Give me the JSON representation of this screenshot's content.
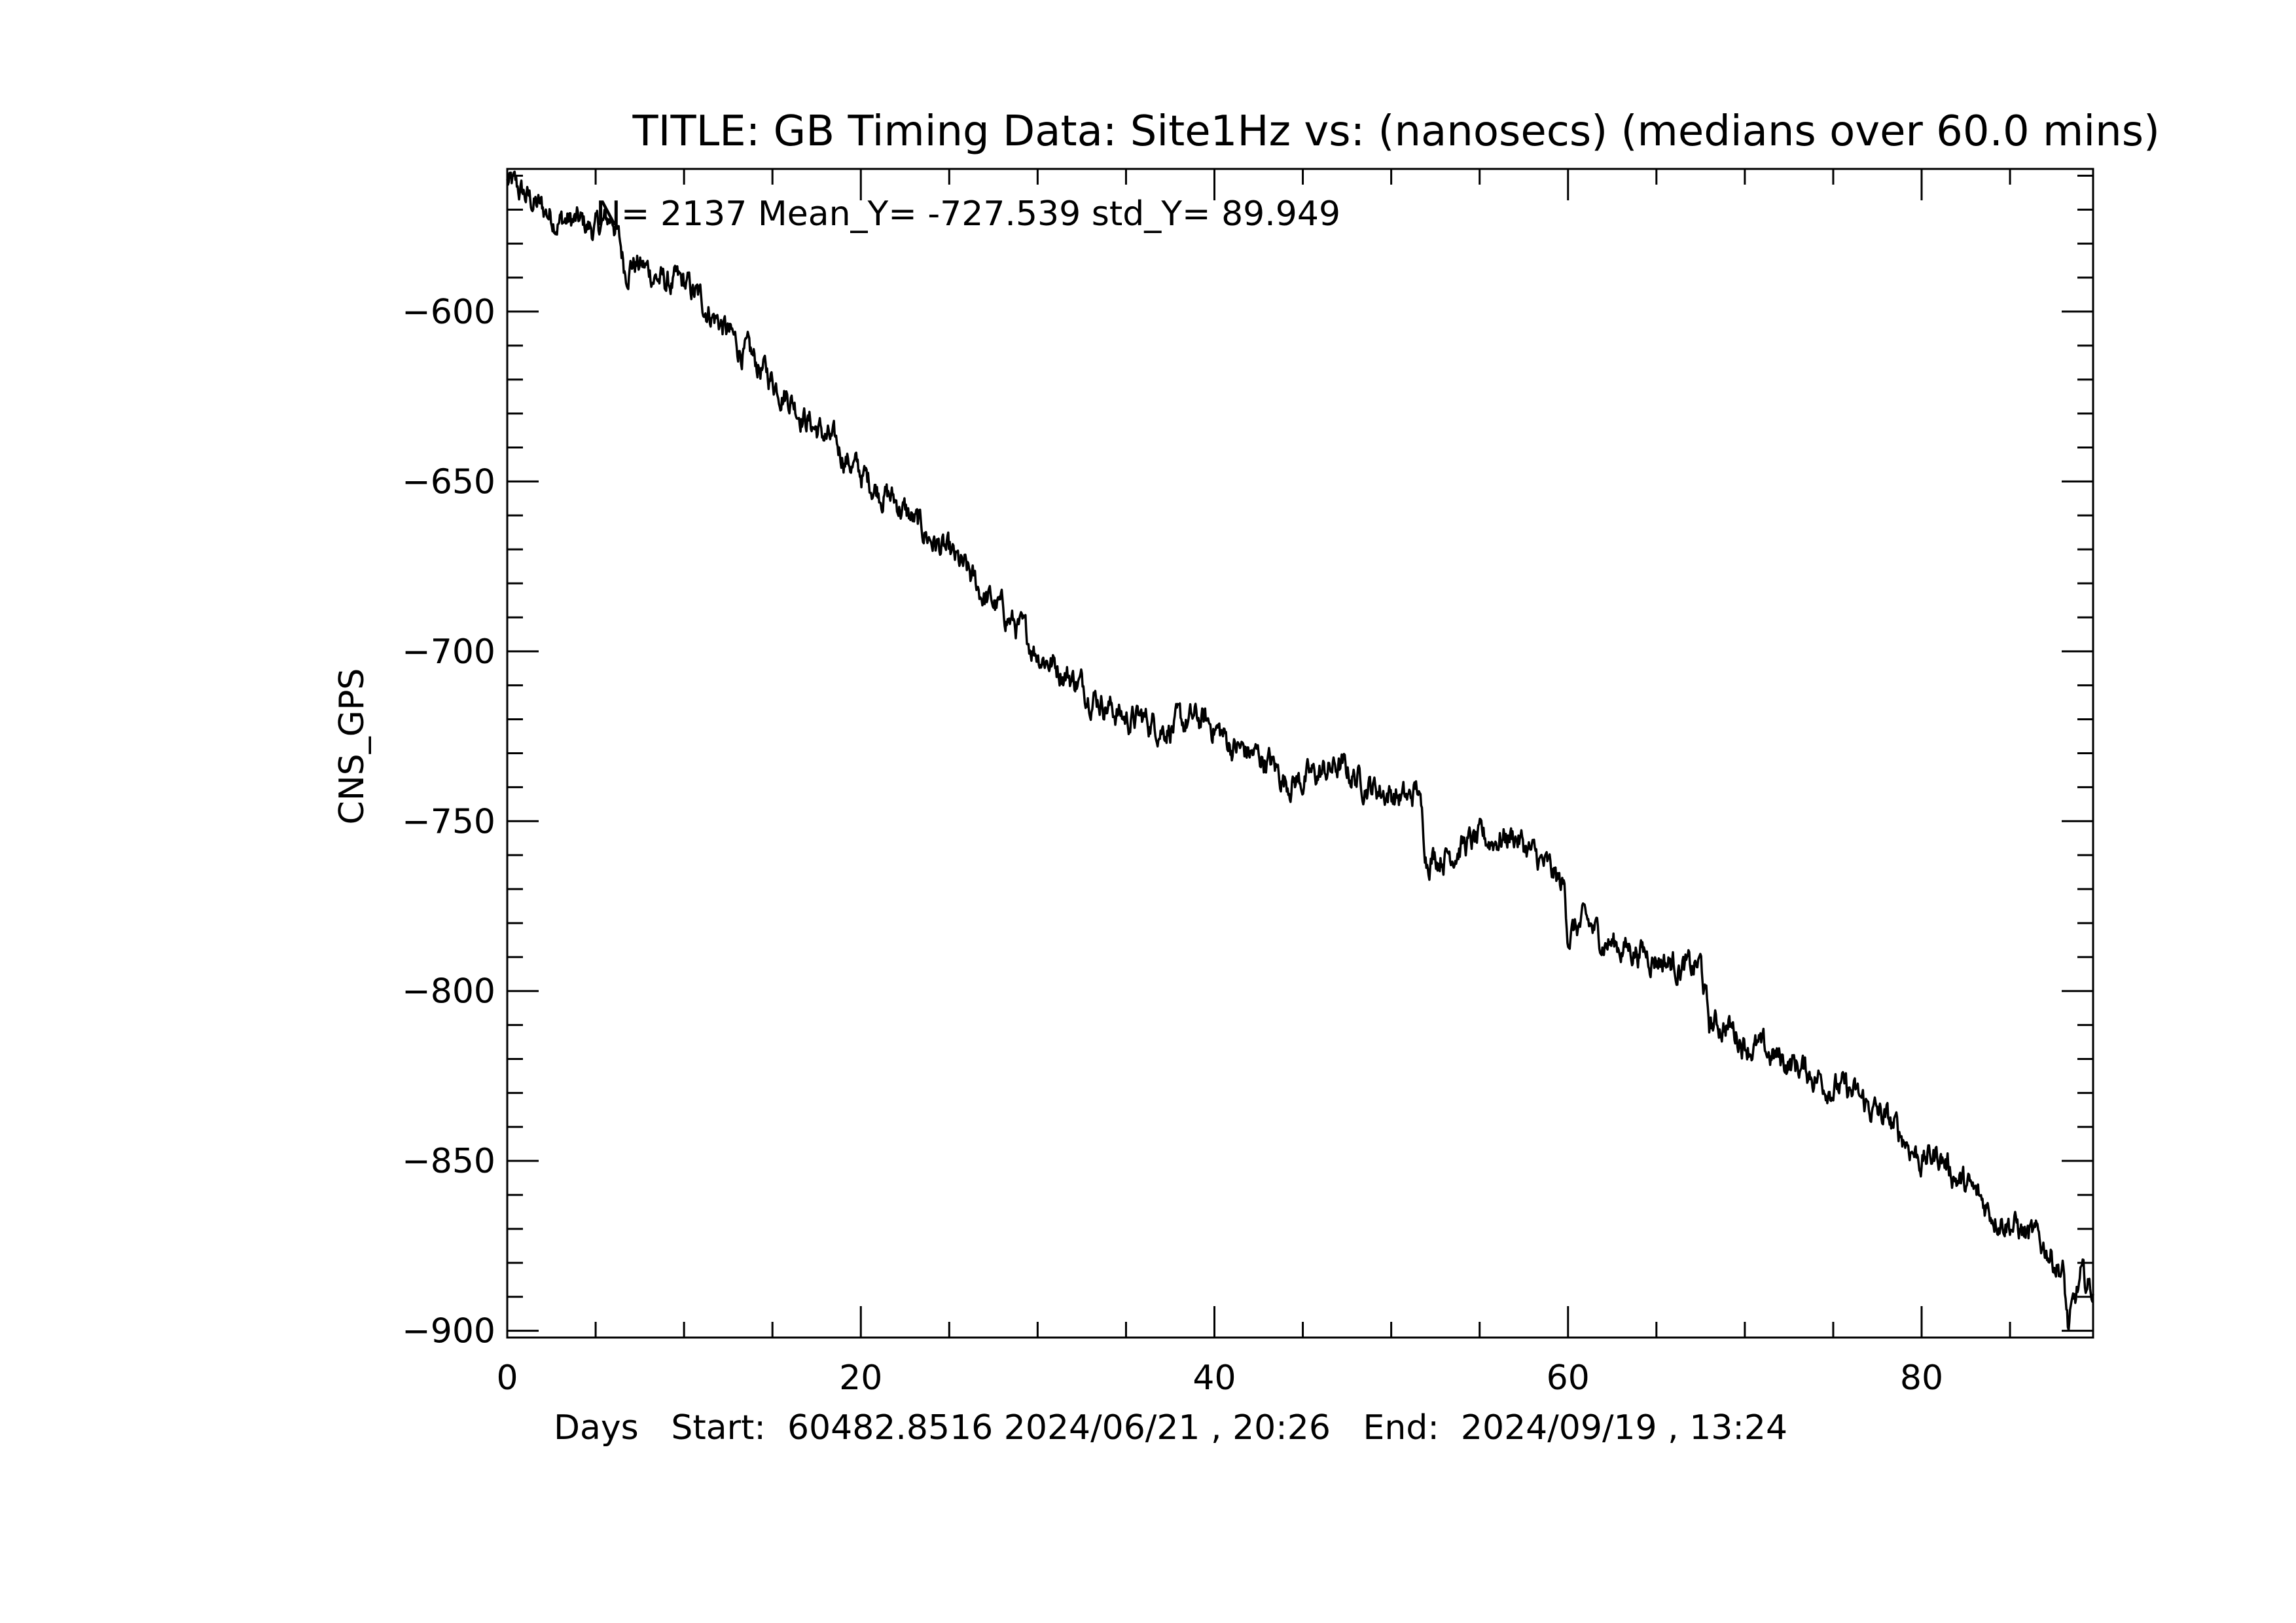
{
  "chart_data": {
    "type": "line",
    "title": "TITLE: GB Timing Data: Site1Hz vs: (nanosecs) (medians over 60.0 mins)",
    "stats_text": "N=  2137 Mean_Y=  -727.539 std_Y=    89.949",
    "ylabel": "CNS_GPS",
    "xlabel": "Days   Start:  60482.8516 2024/06/21 , 20:26   End:  2024/09/19 , 13:24",
    "xlim": [
      0,
      89.7
    ],
    "ylim": [
      -902,
      -558
    ],
    "x_ticks": [
      0,
      20,
      40,
      60,
      80
    ],
    "x_tick_labels": [
      "0",
      "20",
      "40",
      "60",
      "80"
    ],
    "y_ticks": [
      -600,
      -650,
      -700,
      -750,
      -800,
      -850,
      -900
    ],
    "y_tick_labels": [
      "−600",
      "−650",
      "−700",
      "−750",
      "−800",
      "−850",
      "−900"
    ],
    "grid": false,
    "color": "#000000",
    "series": [
      {
        "x": [
          0,
          1,
          2,
          3,
          4,
          5,
          6,
          6.7,
          7,
          8,
          9,
          10,
          11,
          12,
          13,
          14,
          15,
          16,
          17,
          18,
          19,
          20,
          21,
          22,
          23,
          24,
          25,
          26,
          27,
          28,
          29,
          30,
          31,
          32,
          33,
          34,
          35,
          36,
          37,
          38,
          39,
          40,
          41,
          42,
          43,
          44,
          45,
          46,
          47,
          48,
          49,
          50,
          51,
          51.5,
          52,
          53,
          54,
          55,
          56,
          57,
          58,
          59,
          59.8,
          60,
          61,
          62,
          63,
          64,
          65,
          66,
          67,
          67.5,
          68,
          69,
          70,
          71,
          72,
          73,
          74,
          75,
          76,
          77,
          78,
          79,
          80,
          81,
          82,
          83,
          84,
          85,
          86,
          87,
          88,
          88.3,
          89,
          89.7
        ],
        "y": [
          -562,
          -566,
          -570,
          -573,
          -574,
          -576,
          -572,
          -588,
          -585,
          -588,
          -592,
          -592,
          -597,
          -603,
          -610,
          -615,
          -620,
          -625,
          -632,
          -637,
          -642,
          -648,
          -652,
          -656,
          -662,
          -667,
          -672,
          -677,
          -684,
          -688,
          -694,
          -700,
          -704,
          -708,
          -712,
          -716,
          -720,
          -720,
          -722,
          -722,
          -720,
          -722,
          -728,
          -730,
          -732,
          -738,
          -738,
          -736,
          -734,
          -737,
          -740,
          -742,
          -744,
          -740,
          -760,
          -760,
          -757,
          -756,
          -755,
          -754,
          -760,
          -765,
          -770,
          -783,
          -780,
          -785,
          -787,
          -788,
          -790,
          -792,
          -794,
          -792,
          -810,
          -810,
          -815,
          -818,
          -820,
          -822,
          -825,
          -828,
          -830,
          -834,
          -838,
          -843,
          -850,
          -848,
          -855,
          -860,
          -865,
          -868,
          -872,
          -875,
          -883,
          -900,
          -885,
          -888
        ]
      }
    ]
  }
}
